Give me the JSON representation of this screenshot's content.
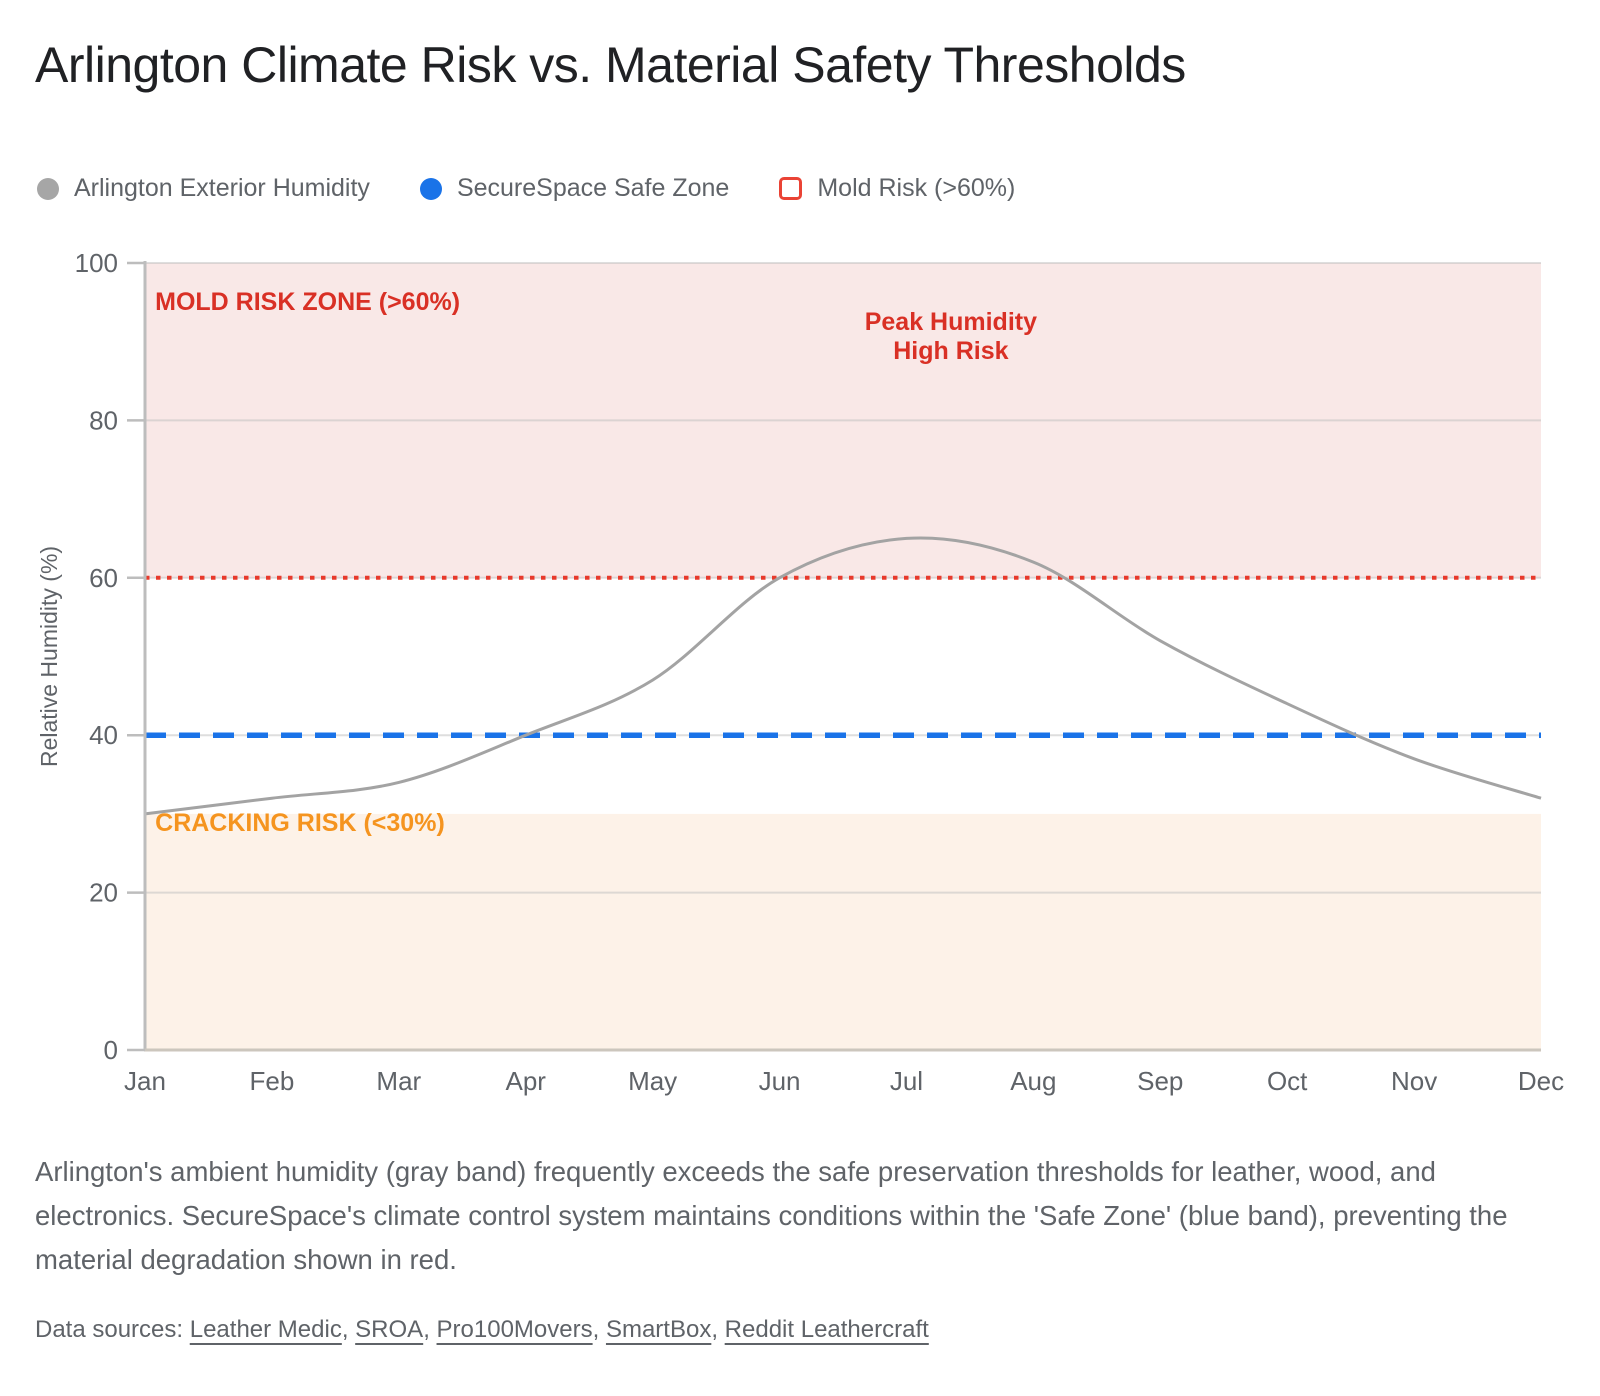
{
  "title": "Arlington Climate Risk vs. Material Safety Thresholds",
  "legend": [
    {
      "label": "Arlington Exterior Humidity",
      "marker": "circle",
      "color": "#a6a6a6"
    },
    {
      "label": "SecureSpace Safe Zone",
      "marker": "circle",
      "color": "#1a73e8"
    },
    {
      "label": "Mold Risk (>60%)",
      "marker": "square-outline",
      "color": "#ea4335"
    }
  ],
  "chart_data": {
    "type": "line",
    "x": [
      "Jan",
      "Feb",
      "Mar",
      "Apr",
      "May",
      "Jun",
      "Jul",
      "Aug",
      "Sep",
      "Oct",
      "Nov",
      "Dec"
    ],
    "series": [
      {
        "name": "Arlington Exterior Humidity",
        "color": "#a3a3a3",
        "values": [
          30,
          32,
          34,
          40,
          47,
          60,
          65,
          62,
          52,
          44,
          37,
          32
        ]
      }
    ],
    "ylabel": "Relative Humidity (%)",
    "ylim": [
      0,
      100
    ],
    "yticks": [
      0,
      20,
      40,
      60,
      80,
      100
    ],
    "grid": "horizontal",
    "legend_position": "top",
    "zones": [
      {
        "name": "mold-risk-zone",
        "label": "MOLD RISK ZONE (>60%)",
        "from": 60,
        "to": 100,
        "fill": "#f9e8e7",
        "label_color": "#d93025",
        "label_x": 0.08,
        "label_y": 94
      },
      {
        "name": "cracking-risk-zone",
        "label": "CRACKING RISK (<30%)",
        "from": 0,
        "to": 30,
        "fill": "#fdf2e8",
        "label_color": "#f5941f",
        "label_x": 0.08,
        "label_y": 27.8
      }
    ],
    "thresholds": [
      {
        "name": "mold-risk-threshold-line",
        "value": 60,
        "color": "#e8392b",
        "style": "dotted"
      },
      {
        "name": "safe-zone-line",
        "value": 40,
        "color": "#1a73e8",
        "style": "dashed"
      }
    ],
    "annotations": [
      {
        "lines": [
          "Peak Humidity",
          "High Risk"
        ],
        "x": 6.35,
        "y": 91.5,
        "color": "#d93025"
      }
    ]
  },
  "caption": "Arlington's ambient humidity (gray band) frequently exceeds the safe preservation thresholds for leather, wood, and electronics. SecureSpace's climate control system maintains conditions within the 'Safe Zone' (blue band), preventing the material degradation shown in red.",
  "sources": {
    "prefix": "Data sources: ",
    "links": [
      {
        "label": "Leather Medic"
      },
      {
        "label": "SROA"
      },
      {
        "label": "Pro100Movers"
      },
      {
        "label": "SmartBox"
      },
      {
        "label": "Reddit Leathercraft"
      }
    ]
  }
}
